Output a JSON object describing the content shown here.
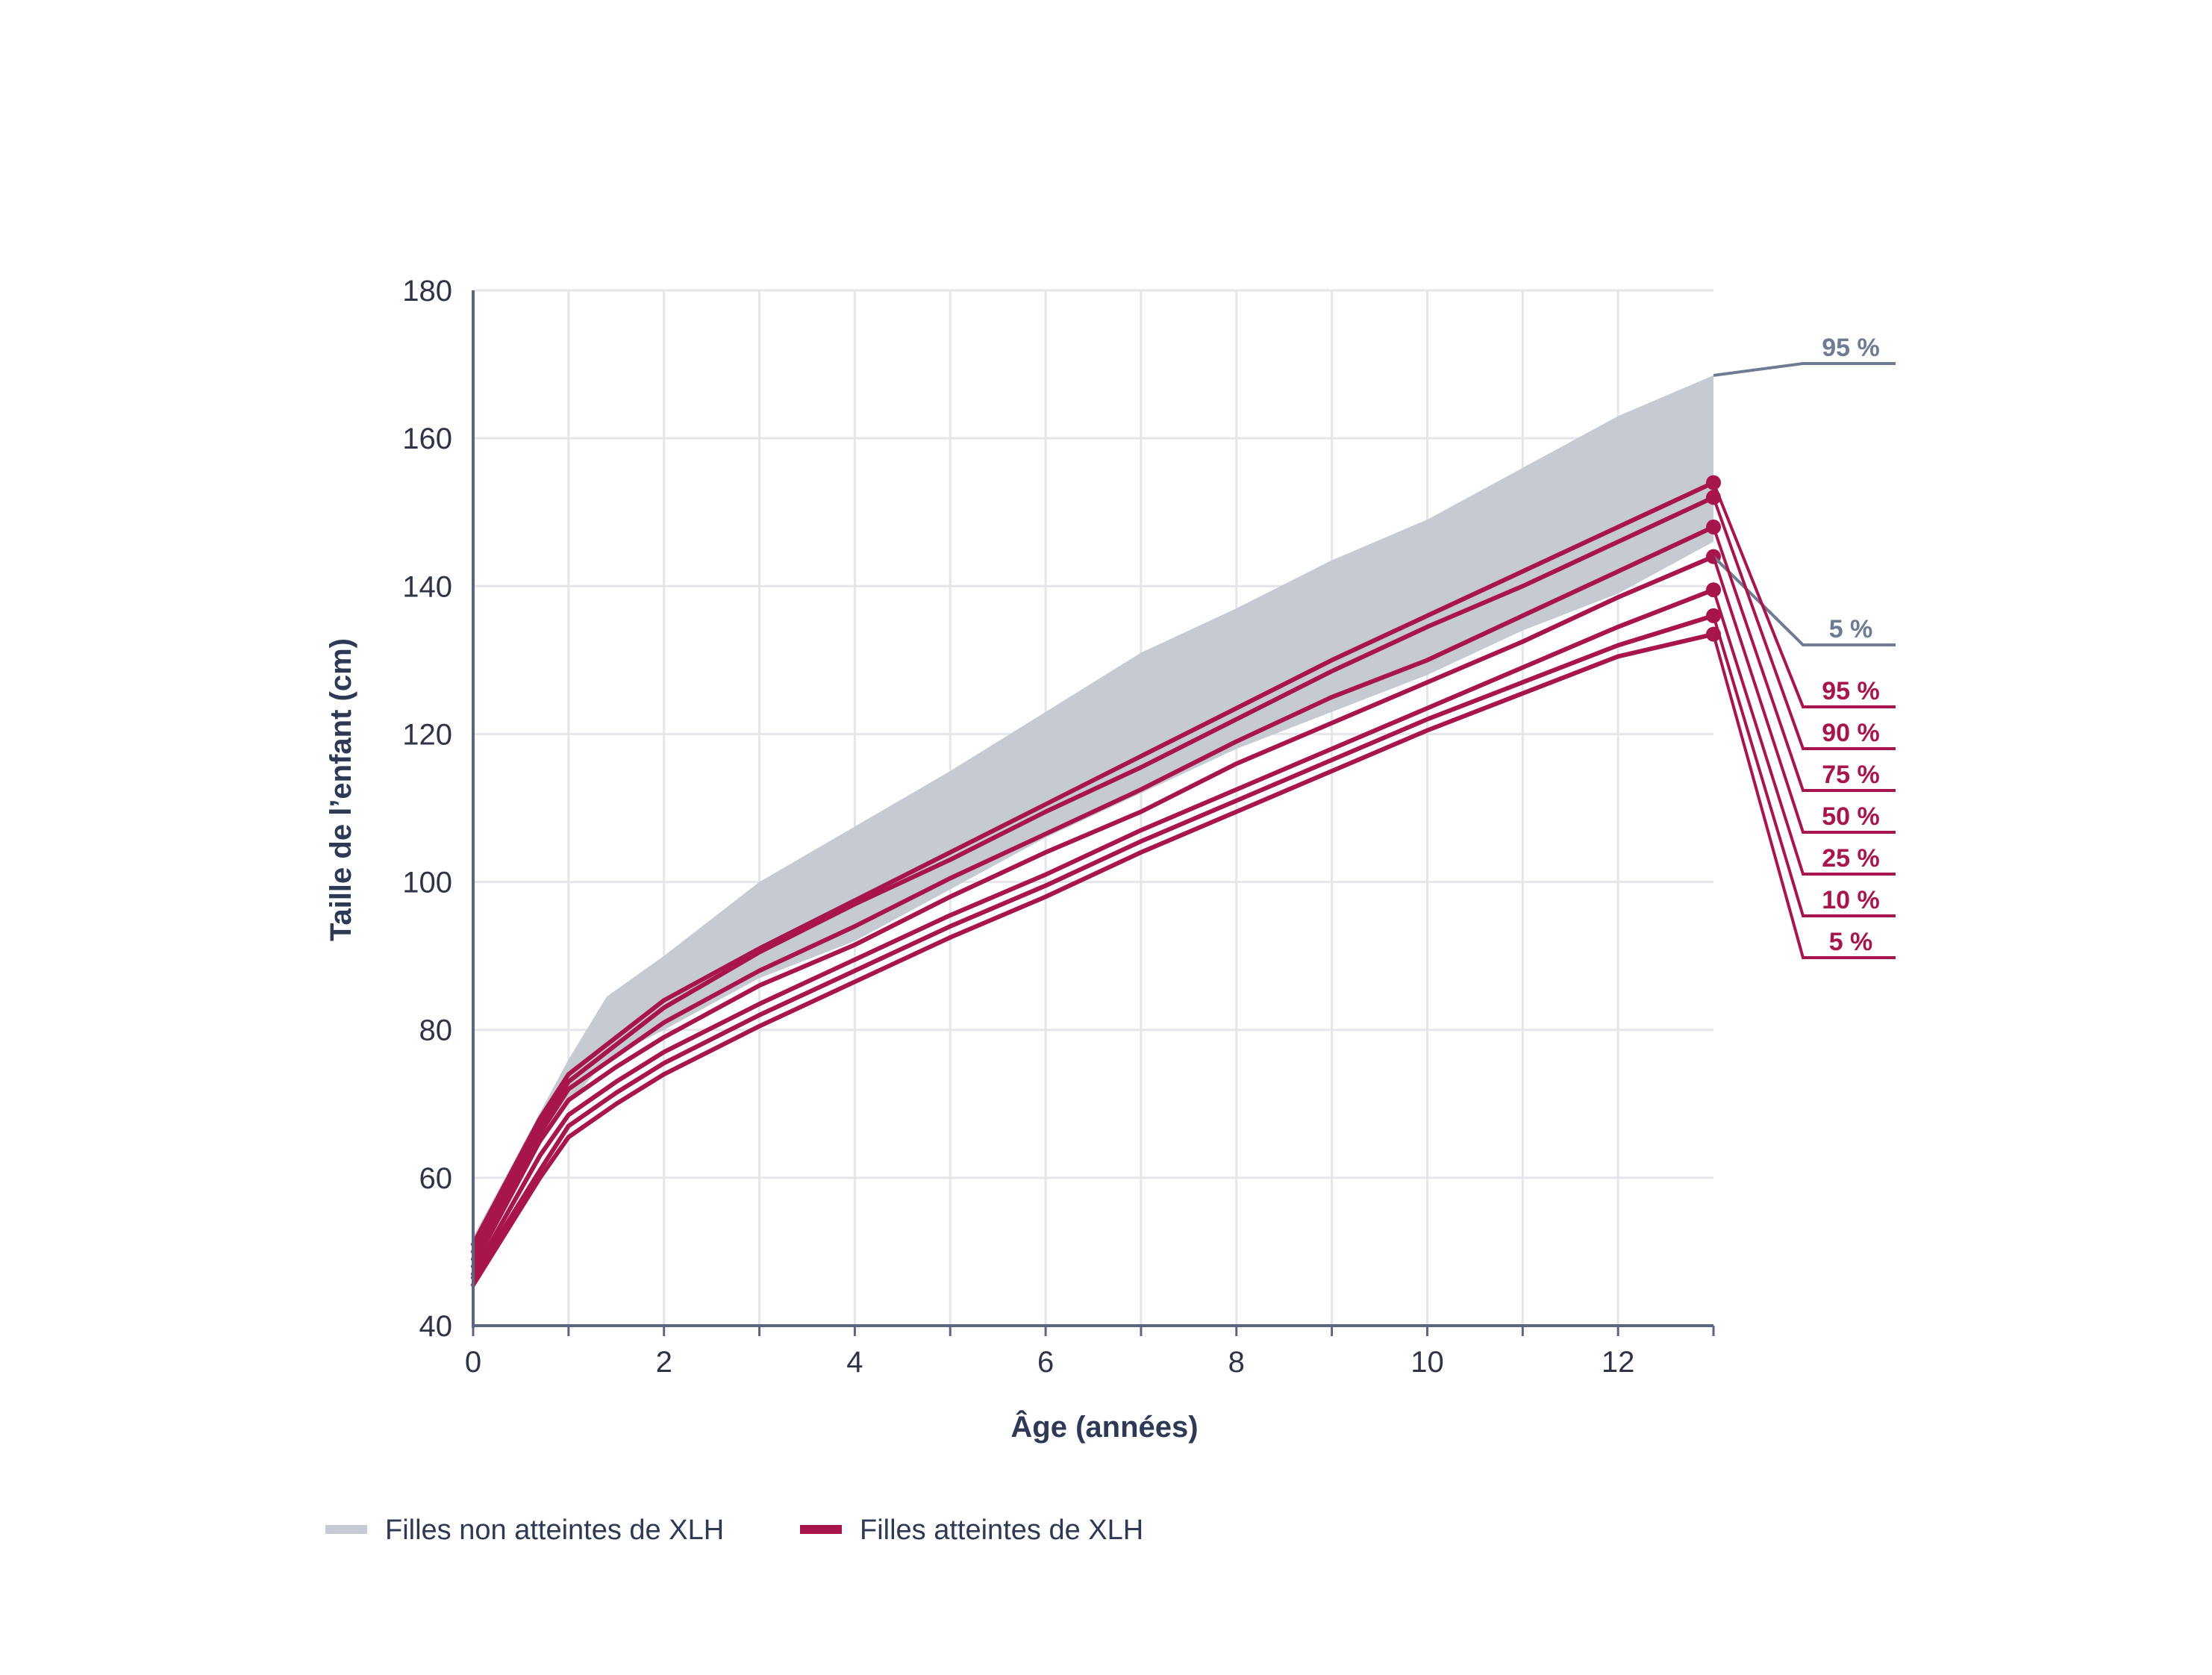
{
  "chart_data": {
    "type": "line",
    "xlabel": "Âge (années)",
    "ylabel": "Taille de l’enfant (cm)",
    "xlim": [
      0,
      13
    ],
    "ylim": [
      40,
      180
    ],
    "xticks": [
      0,
      2,
      4,
      6,
      8,
      10,
      12
    ],
    "yticks": [
      40,
      60,
      80,
      100,
      120,
      140,
      160,
      180
    ],
    "grid": true,
    "colors": {
      "band": "#c6cad3",
      "band_line": "#6f7b92",
      "xlh": "#a8154c",
      "axis": "#5d6680",
      "grid": "#e4e6ea"
    },
    "band": {
      "name": "Filles non atteintes de XLH",
      "x": [
        0,
        1,
        1.4,
        2,
        3,
        4,
        5,
        6,
        7,
        8,
        9,
        10,
        11,
        12,
        13
      ],
      "upper": [
        52,
        76,
        84.5,
        90,
        100,
        107.5,
        115,
        123,
        131,
        137,
        143.5,
        149,
        156,
        163,
        168.5
      ],
      "lower": [
        51,
        70,
        76,
        80,
        87,
        92,
        99,
        106,
        112,
        118,
        123,
        128,
        134,
        139,
        146
      ],
      "labels": [
        "95 %",
        "5 %"
      ]
    },
    "series": [
      {
        "name": "95 %",
        "x": [
          0,
          0.7,
          1,
          1.5,
          2,
          3,
          4,
          5,
          6,
          7,
          8,
          9,
          10,
          11,
          12,
          13
        ],
        "values": [
          51,
          68,
          74,
          79,
          84,
          91,
          97.5,
          104,
          110.5,
          117,
          123.5,
          130,
          136,
          142,
          148,
          154
        ]
      },
      {
        "name": "90 %",
        "x": [
          0,
          0.7,
          1,
          1.5,
          2,
          3,
          4,
          5,
          6,
          7,
          8,
          9,
          10,
          11,
          12,
          13
        ],
        "values": [
          50,
          67,
          73,
          78,
          83,
          90.5,
          97,
          103,
          109.5,
          115.5,
          122,
          128.5,
          134.5,
          140,
          146,
          152
        ]
      },
      {
        "name": "75 %",
        "x": [
          0,
          0.7,
          1,
          1.5,
          2,
          3,
          4,
          5,
          6,
          7,
          8,
          9,
          10,
          11,
          12,
          13
        ],
        "values": [
          49,
          66,
          72,
          76.5,
          81,
          88,
          94,
          100.5,
          106.5,
          112.5,
          119,
          125,
          130,
          136,
          142,
          148
        ]
      },
      {
        "name": "50 %",
        "x": [
          0,
          0.7,
          1,
          1.5,
          2,
          3,
          4,
          5,
          6,
          7,
          8,
          9,
          10,
          11,
          12,
          13
        ],
        "values": [
          48,
          65,
          70.5,
          75,
          79,
          86,
          91.5,
          98,
          104,
          109.5,
          116,
          121.5,
          127,
          132.5,
          138.5,
          144
        ]
      },
      {
        "name": "25 %",
        "x": [
          0,
          0.7,
          1,
          1.5,
          2,
          3,
          4,
          5,
          6,
          7,
          8,
          9,
          10,
          11,
          12,
          13
        ],
        "values": [
          47,
          63,
          68.5,
          73,
          77,
          83.5,
          89.5,
          95.5,
          101,
          107,
          112.5,
          118,
          123.5,
          129,
          134.5,
          139.5
        ]
      },
      {
        "name": "10 %",
        "x": [
          0,
          0.7,
          1,
          1.5,
          2,
          3,
          4,
          5,
          6,
          7,
          8,
          9,
          10,
          11,
          12,
          13
        ],
        "values": [
          46.5,
          61,
          67,
          71.5,
          75.5,
          82,
          88,
          94,
          99.5,
          105.5,
          111,
          116.5,
          122,
          127,
          132,
          136
        ]
      },
      {
        "name": "5 %",
        "x": [
          0,
          0.7,
          1,
          1.5,
          2,
          3,
          4,
          5,
          6,
          7,
          8,
          9,
          10,
          11,
          12,
          13
        ],
        "values": [
          45.5,
          60,
          65.5,
          70,
          74,
          80.5,
          86.5,
          92.5,
          98,
          104,
          109.5,
          115,
          120.5,
          125.5,
          130.5,
          133.5
        ]
      }
    ],
    "legend": {
      "placement": "bottom-left",
      "items": [
        {
          "label": "Filles non atteintes de XLH",
          "color": "#c6cad3"
        },
        {
          "label": "Filles atteintes de XLH",
          "color": "#a8154c"
        }
      ]
    }
  }
}
